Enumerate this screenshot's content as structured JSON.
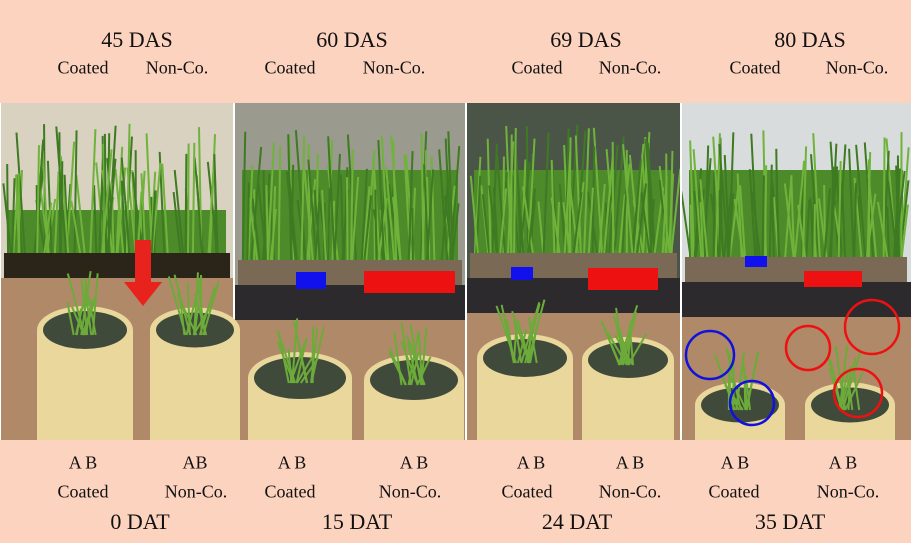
{
  "panels": [
    {
      "das": "45 DAS",
      "top_coated": "Coated",
      "top_non_coated": "Non-Co.",
      "pots_coated": "A B",
      "pots_non_coated": "AB",
      "bottom_coated": "Coated",
      "bottom_non_coated": "Non-Co.",
      "dat": "0 DAT"
    },
    {
      "das": "60 DAS",
      "top_coated": "Coated",
      "top_non_coated": "Non-Co.",
      "pots_coated": "A B",
      "pots_non_coated": "A B",
      "bottom_coated": "Coated",
      "bottom_non_coated": "Non-Co.",
      "dat": "15 DAT"
    },
    {
      "das": "69 DAS",
      "top_coated": "Coated",
      "top_non_coated": "Non-Co.",
      "pots_coated": "A B",
      "pots_non_coated": "A B",
      "bottom_coated": "Coated",
      "bottom_non_coated": "Non-Co.",
      "dat": "24 DAT"
    },
    {
      "das": "80 DAS",
      "top_coated": "Coated",
      "top_non_coated": "Non-Co.",
      "pots_coated": "A B",
      "pots_non_coated": "A B",
      "bottom_coated": "Coated",
      "bottom_non_coated": "Non-Co.",
      "dat": "35 DAT"
    }
  ]
}
